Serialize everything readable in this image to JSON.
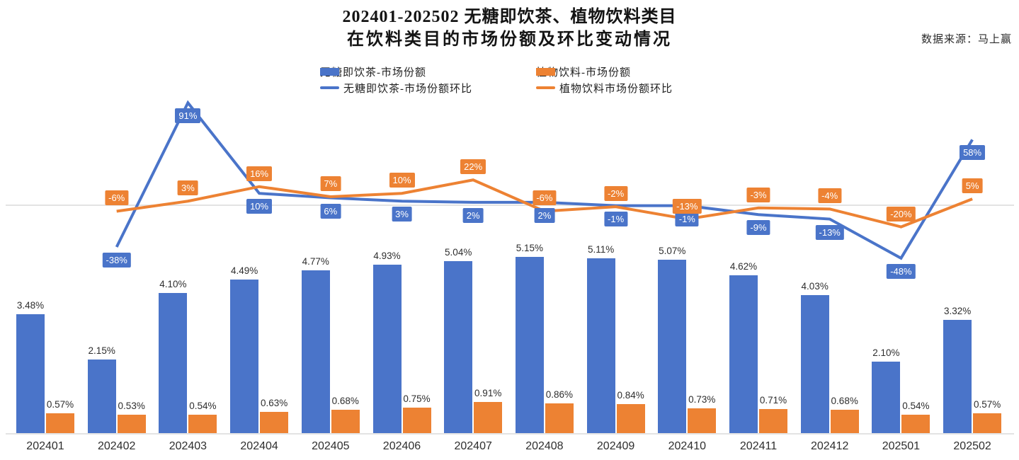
{
  "title": {
    "line1": "202401-202502 无糖即饮茶、植物饮料类目",
    "line2": "在饮料类目的市场份额及环比变动情况"
  },
  "source": "数据来源：马上赢",
  "colors": {
    "blue": "#4a74c9",
    "orange": "#ed8233",
    "gridline": "#e3e3e3",
    "label_text": "#2e2e2e"
  },
  "legend": {
    "items": [
      {
        "label": "无糖即饮茶-市场份额",
        "marker": "bar",
        "color": "#4a74c9"
      },
      {
        "label": "植物饮料-市场份额",
        "marker": "bar",
        "color": "#ed8233"
      },
      {
        "label": "无糖即饮茶-市场份额环比",
        "marker": "line",
        "color": "#4a74c9"
      },
      {
        "label": "植物饮料市场份额环比",
        "marker": "line",
        "color": "#ed8233"
      }
    ]
  },
  "chart_data": {
    "type": "bar",
    "subtype": "combo bar + line, dual hidden axes, value labels on all points",
    "categories": [
      "202401",
      "202402",
      "202403",
      "202404",
      "202405",
      "202406",
      "202407",
      "202408",
      "202409",
      "202410",
      "202411",
      "202412",
      "202501",
      "202502"
    ],
    "series": [
      {
        "name": "无糖即饮茶-市场份额",
        "type": "bar",
        "color": "#4a74c9",
        "unit": "%",
        "values": [
          3.48,
          2.15,
          4.1,
          4.49,
          4.77,
          4.93,
          5.04,
          5.15,
          5.11,
          5.07,
          4.62,
          4.03,
          2.1,
          3.32
        ],
        "labels": [
          "3.48%",
          "2.15%",
          "4.10%",
          "4.49%",
          "4.77%",
          "4.93%",
          "5.04%",
          "5.15%",
          "5.11%",
          "5.07%",
          "4.62%",
          "4.03%",
          "2.10%",
          "3.32%"
        ]
      },
      {
        "name": "植物饮料-市场份额",
        "type": "bar",
        "color": "#ed8233",
        "unit": "%",
        "values": [
          0.57,
          0.53,
          0.54,
          0.63,
          0.68,
          0.75,
          0.91,
          0.86,
          0.84,
          0.73,
          0.71,
          0.68,
          0.54,
          0.57
        ],
        "labels": [
          "0.57%",
          "0.53%",
          "0.54%",
          "0.63%",
          "0.68%",
          "0.75%",
          "0.91%",
          "0.86%",
          "0.84%",
          "0.73%",
          "0.71%",
          "0.68%",
          "0.54%",
          "0.57%"
        ]
      },
      {
        "name": "无糖即饮茶-市场份额环比",
        "type": "line",
        "color": "#4a74c9",
        "unit": "%",
        "label_side": "below",
        "values": [
          null,
          -38,
          91,
          10,
          6,
          3,
          2,
          2,
          -1,
          -1,
          -9,
          -13,
          -48,
          58
        ],
        "labels": [
          null,
          "-38%",
          "91%",
          "10%",
          "6%",
          "3%",
          "2%",
          "2%",
          "-1%",
          "-1%",
          "-9%",
          "-13%",
          "-48%",
          "58%"
        ]
      },
      {
        "name": "植物饮料市场份额环比",
        "type": "line",
        "color": "#ed8233",
        "unit": "%",
        "label_side": "above",
        "values": [
          null,
          -6,
          3,
          16,
          7,
          10,
          22,
          -6,
          -2,
          -13,
          -3,
          -4,
          -20,
          5
        ],
        "labels": [
          null,
          "-6%",
          "3%",
          "16%",
          "7%",
          "10%",
          "22%",
          "-6%",
          "-2%",
          "-13%",
          "-3%",
          "-4%",
          "-20%",
          "5%"
        ]
      }
    ],
    "layout_hints": {
      "bar_axis_range_pct": [
        0,
        5.5
      ],
      "line_axis_zero_gridline": true,
      "axes_hidden": true,
      "legend_position": "top-center, two rows",
      "grid": "single horizontal zero line for ratio lines"
    }
  }
}
